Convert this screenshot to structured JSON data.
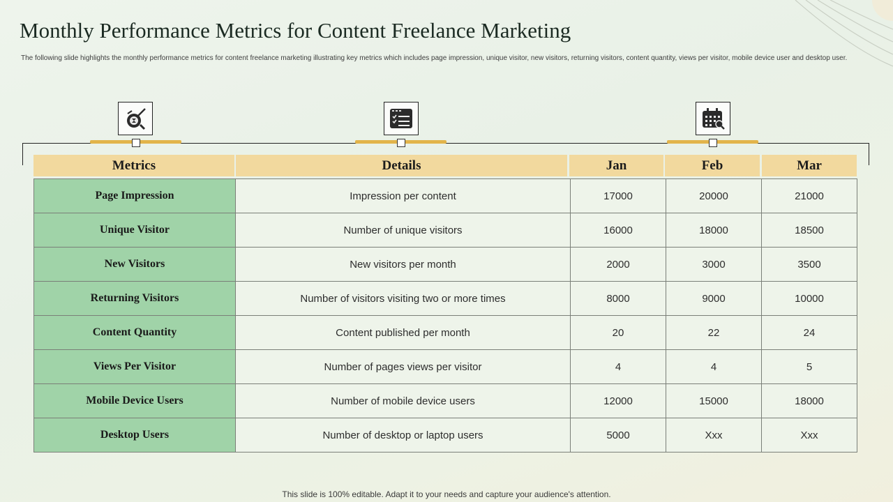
{
  "slide": {
    "title": "Monthly Performance Metrics for Content Freelance Marketing",
    "subtitle": "The following slide highlights the monthly performance metrics for content freelance marketing illustrating key metrics which includes page impression, unique visitor, new visitors, returning visitors, content quantity, views per visitor, mobile device user and desktop user.",
    "footer": "This slide is 100% editable. Adapt it to your needs and capture your audience's attention."
  },
  "icons": [
    "target-chart-icon",
    "checklist-window-icon",
    "calendar-search-icon"
  ],
  "colors": {
    "header": "#f2d99e",
    "metric_cell": "#a0d3a8",
    "accent_bar": "#e2b44a",
    "body_cell": "#eef4ea"
  },
  "table": {
    "headers": [
      "Metrics",
      "Details",
      "Jan",
      "Feb",
      "Mar"
    ],
    "rows": [
      [
        "Page Impression",
        "Impression per content",
        "17000",
        "20000",
        "21000"
      ],
      [
        "Unique Visitor",
        "Number of unique visitors",
        "16000",
        "18000",
        "18500"
      ],
      [
        "New Visitors",
        "New visitors per month",
        "2000",
        "3000",
        "3500"
      ],
      [
        "Returning Visitors",
        "Number of visitors visiting two or more times",
        "8000",
        "9000",
        "10000"
      ],
      [
        "Content Quantity",
        "Content published per month",
        "20",
        "22",
        "24"
      ],
      [
        "Views Per Visitor",
        "Number of pages views per visitor",
        "4",
        "4",
        "5"
      ],
      [
        "Mobile Device Users",
        "Number of mobile device users",
        "12000",
        "15000",
        "18000"
      ],
      [
        "Desktop Users",
        "Number of desktop or laptop users",
        "5000",
        "Xxx",
        "Xxx"
      ]
    ]
  }
}
